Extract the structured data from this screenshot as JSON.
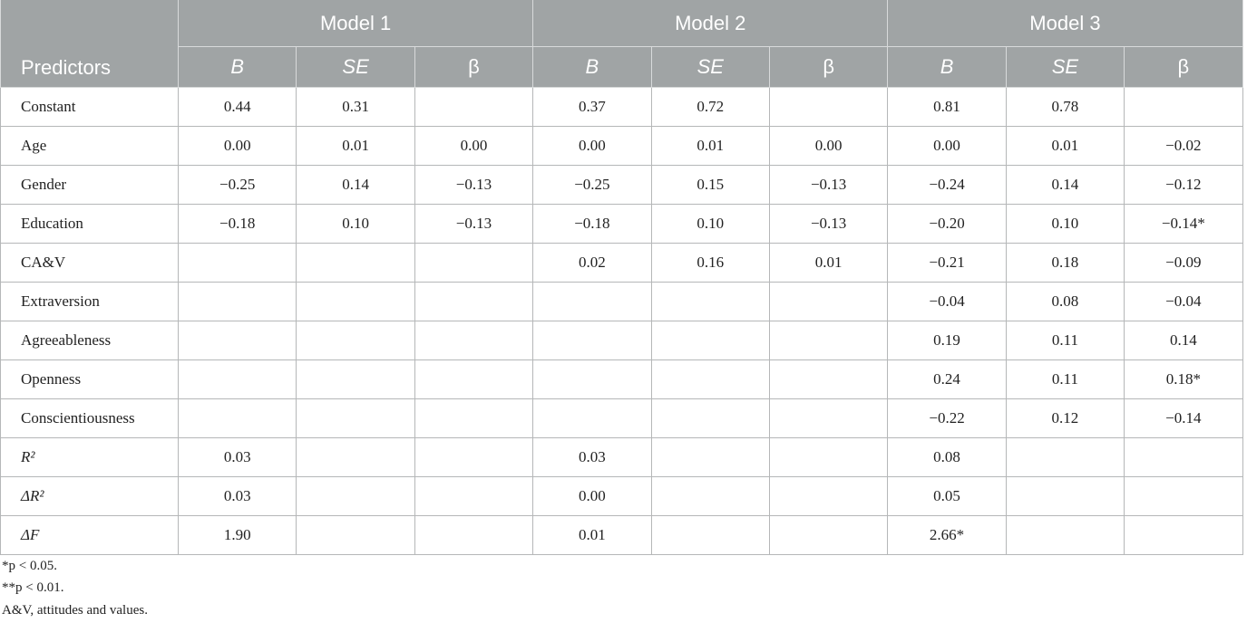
{
  "table": {
    "header": {
      "predictors": "Predictors",
      "models": [
        "Model 1",
        "Model 2",
        "Model 3"
      ],
      "stats": [
        "B",
        "SE",
        "β"
      ]
    },
    "rows": [
      [
        "Constant",
        "0.44",
        "0.31",
        null,
        "0.37",
        "0.72",
        null,
        "0.81",
        "0.78",
        null
      ],
      [
        "Age",
        "0.00",
        "0.01",
        "0.00",
        "0.00",
        "0.01",
        "0.00",
        "0.00",
        "0.01",
        "−0.02"
      ],
      [
        "Gender",
        "−0.25",
        "0.14",
        "−0.13",
        "−0.25",
        "0.15",
        "−0.13",
        "−0.24",
        "0.14",
        "−0.12"
      ],
      [
        "Education",
        "−0.18",
        "0.10",
        "−0.13",
        "−0.18",
        "0.10",
        "−0.13",
        "−0.20",
        "0.10",
        "−0.14*"
      ],
      [
        "CA&V",
        null,
        null,
        null,
        "0.02",
        "0.16",
        "0.01",
        "−0.21",
        "0.18",
        "−0.09"
      ],
      [
        "Extraversion",
        null,
        null,
        null,
        null,
        null,
        null,
        "−0.04",
        "0.08",
        "−0.04"
      ],
      [
        "Agreeableness",
        null,
        null,
        null,
        null,
        null,
        null,
        "0.19",
        "0.11",
        "0.14"
      ],
      [
        "Openness",
        null,
        null,
        null,
        null,
        null,
        null,
        "0.24",
        "0.11",
        "0.18*"
      ],
      [
        "Conscientiousness",
        null,
        null,
        null,
        null,
        null,
        null,
        "−0.22",
        "0.12",
        "−0.14"
      ],
      [
        "R²",
        "0.03",
        null,
        null,
        "0.03",
        null,
        null,
        "0.08",
        null,
        null
      ],
      [
        "ΔR²",
        "0.03",
        null,
        null,
        "0.00",
        null,
        null,
        "0.05",
        null,
        null
      ],
      [
        "ΔF",
        "1.90",
        null,
        null,
        "0.01",
        null,
        null,
        "2.66*",
        null,
        null
      ]
    ]
  },
  "footnotes": [
    "*p < 0.05.",
    "**p < 0.01.",
    "A&V, attitudes and values."
  ]
}
